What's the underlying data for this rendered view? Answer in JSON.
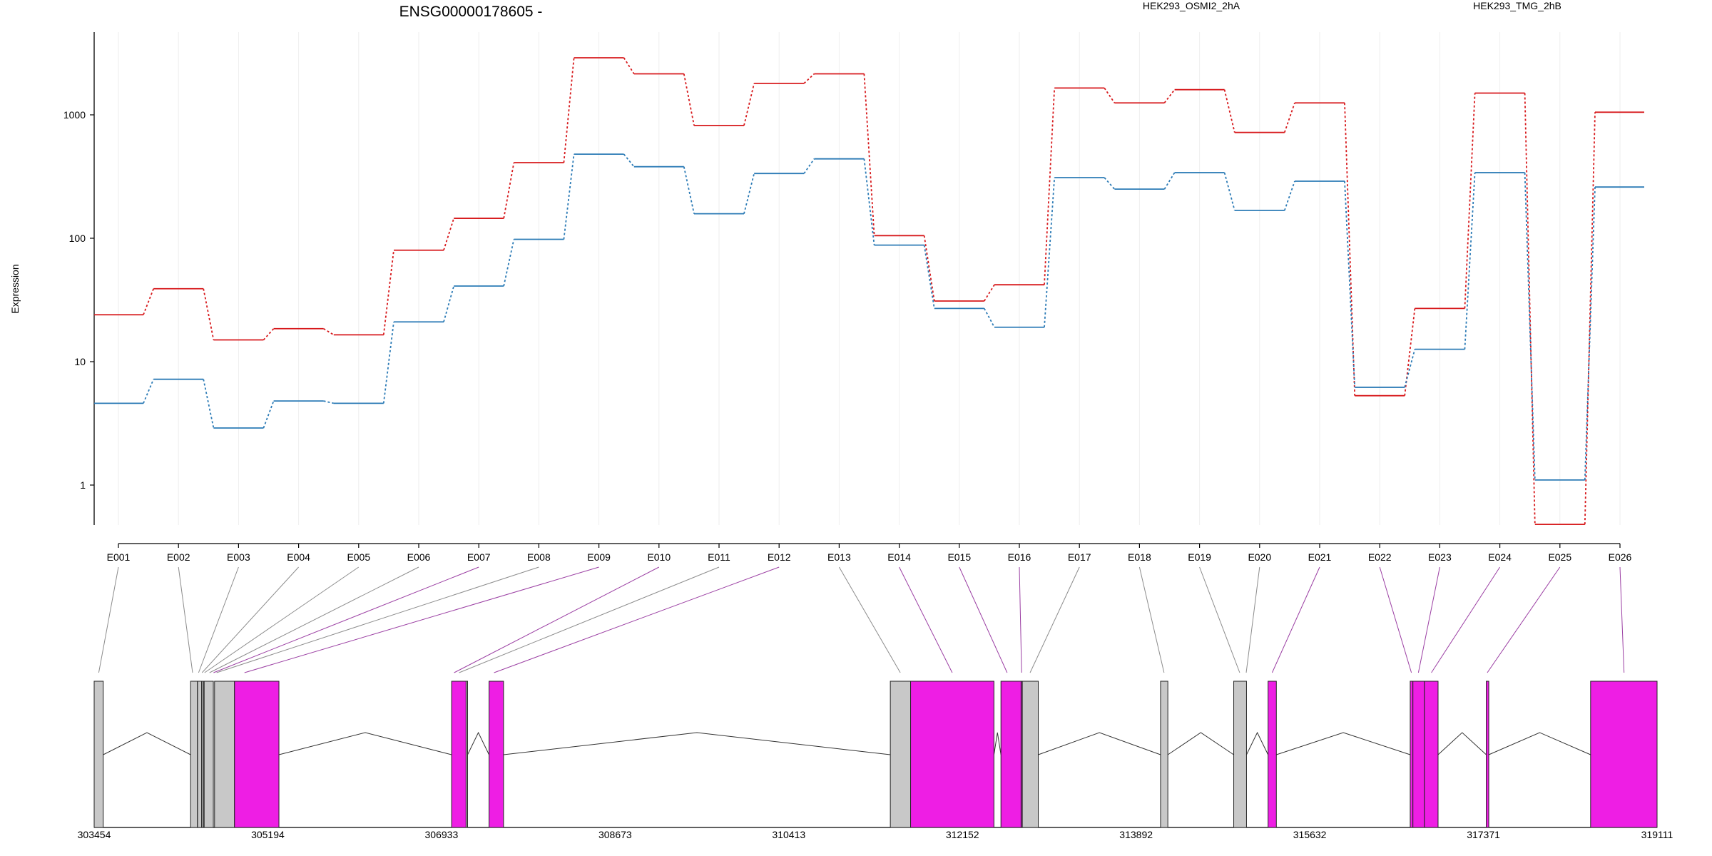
{
  "title": "ENSG00000178605 -",
  "ylabel": "Expression",
  "colors": {
    "series_a": "#d7191c",
    "series_b": "#2c7bb6",
    "exon_exp": "#ee1ee4",
    "exon_flat": "#c8c8c8"
  },
  "chart_data": {
    "type": "line",
    "title": "ENSG00000178605 -",
    "ylabel": "Expression",
    "yscale": "log",
    "ylim": [
      0.45,
      4200
    ],
    "yticks": [
      "1",
      "10",
      "100",
      "1000"
    ],
    "legend_placement": "top",
    "categories": [
      "E001",
      "E002",
      "E003",
      "E004",
      "E005",
      "E006",
      "E007",
      "E008",
      "E009",
      "E010",
      "E011",
      "E012",
      "E013",
      "E014",
      "E015",
      "E016",
      "E017",
      "E018",
      "E019",
      "E020",
      "E021",
      "E022",
      "E023",
      "E024",
      "E025",
      "E026"
    ],
    "series": [
      {
        "name": "HEK293_OSMI2_2hA",
        "color": "#d7191c",
        "values": [
          24,
          39,
          15,
          18.5,
          16.5,
          80,
          145,
          410,
          2900,
          2150,
          820,
          1800,
          2150,
          105,
          31,
          42,
          1650,
          1250,
          1600,
          720,
          1250,
          5.3,
          27,
          1500,
          0.48,
          1050
        ]
      },
      {
        "name": "HEK293_TMG_2hB",
        "color": "#2c7bb6",
        "values": [
          4.6,
          7.2,
          2.9,
          4.8,
          4.6,
          21,
          41,
          98,
          480,
          380,
          158,
          335,
          440,
          88,
          27,
          19,
          310,
          250,
          340,
          168,
          290,
          6.2,
          12.6,
          340,
          1.1,
          260
        ]
      }
    ]
  },
  "gene_model": {
    "coord_labels": [
      "303454",
      "305194",
      "306933",
      "308673",
      "310413",
      "312152",
      "313892",
      "315632",
      "317371",
      "319111"
    ],
    "bin_exons": [
      {
        "start": 303454,
        "end": 303545,
        "type": "flat"
      },
      {
        "start": 304420,
        "end": 304488,
        "type": "flat"
      },
      {
        "start": 304490,
        "end": 304530,
        "type": "flat"
      },
      {
        "start": 304533,
        "end": 304550,
        "type": "flat"
      },
      {
        "start": 304556,
        "end": 304648,
        "type": "flat"
      },
      {
        "start": 304660,
        "end": 304860,
        "type": "flat"
      },
      {
        "start": 304860,
        "end": 305305,
        "type": "exp"
      },
      {
        "start": 307035,
        "end": 307180,
        "type": "exp"
      },
      {
        "start": 307180,
        "end": 307195,
        "type": "flat"
      },
      {
        "start": 307410,
        "end": 307555,
        "type": "exp"
      },
      {
        "start": 311430,
        "end": 311633,
        "type": "flat"
      },
      {
        "start": 311633,
        "end": 312468,
        "type": "exp"
      },
      {
        "start": 312538,
        "end": 312740,
        "type": "exp"
      },
      {
        "start": 312740,
        "end": 312752,
        "type": "exp"
      },
      {
        "start": 312752,
        "end": 312912,
        "type": "flat"
      },
      {
        "start": 314137,
        "end": 314210,
        "type": "flat"
      },
      {
        "start": 314870,
        "end": 314998,
        "type": "flat"
      },
      {
        "start": 315214,
        "end": 315297,
        "type": "exp"
      },
      {
        "start": 316638,
        "end": 316665,
        "type": "exp"
      },
      {
        "start": 316665,
        "end": 316780,
        "type": "exp"
      },
      {
        "start": 316780,
        "end": 316917,
        "type": "exp"
      },
      {
        "start": 317400,
        "end": 317425,
        "type": "exp"
      },
      {
        "start": 318445,
        "end": 319111,
        "type": "exp"
      }
    ],
    "introns": [
      [
        303545,
        304420
      ],
      [
        305305,
        307035
      ],
      [
        307195,
        307410
      ],
      [
        307555,
        311430
      ],
      [
        312468,
        312538
      ],
      [
        312912,
        314137
      ],
      [
        314210,
        314870
      ],
      [
        314998,
        315214
      ],
      [
        315297,
        316638
      ],
      [
        316917,
        317400
      ],
      [
        317425,
        318445
      ]
    ],
    "connectors": [
      {
        "exon": "E001",
        "pos": 303500,
        "type": "flat"
      },
      {
        "exon": "E002",
        "pos": 304440,
        "type": "flat"
      },
      {
        "exon": "E003",
        "pos": 304500,
        "type": "flat"
      },
      {
        "exon": "E004",
        "pos": 304535,
        "type": "flat"
      },
      {
        "exon": "E005",
        "pos": 304560,
        "type": "flat"
      },
      {
        "exon": "E006",
        "pos": 304610,
        "type": "flat"
      },
      {
        "exon": "E007",
        "pos": 304650,
        "type": "exp"
      },
      {
        "exon": "E008",
        "pos": 304680,
        "type": "flat"
      },
      {
        "exon": "E009",
        "pos": 304960,
        "type": "exp"
      },
      {
        "exon": "E010",
        "pos": 307060,
        "type": "exp"
      },
      {
        "exon": "E011",
        "pos": 307110,
        "type": "flat"
      },
      {
        "exon": "E012",
        "pos": 307460,
        "type": "exp"
      },
      {
        "exon": "E013",
        "pos": 311530,
        "type": "flat"
      },
      {
        "exon": "E014",
        "pos": 312050,
        "type": "exp"
      },
      {
        "exon": "E015",
        "pos": 312600,
        "type": "exp"
      },
      {
        "exon": "E016",
        "pos": 312745,
        "type": "exp"
      },
      {
        "exon": "E017",
        "pos": 312830,
        "type": "flat"
      },
      {
        "exon": "E018",
        "pos": 314172,
        "type": "flat"
      },
      {
        "exon": "E019",
        "pos": 314930,
        "type": "flat"
      },
      {
        "exon": "E020",
        "pos": 314995,
        "type": "flat"
      },
      {
        "exon": "E021",
        "pos": 315255,
        "type": "exp"
      },
      {
        "exon": "E022",
        "pos": 316650,
        "type": "exp"
      },
      {
        "exon": "E023",
        "pos": 316720,
        "type": "exp"
      },
      {
        "exon": "E024",
        "pos": 316850,
        "type": "exp"
      },
      {
        "exon": "E025",
        "pos": 317410,
        "type": "exp"
      },
      {
        "exon": "E026",
        "pos": 318780,
        "type": "exp"
      }
    ]
  }
}
